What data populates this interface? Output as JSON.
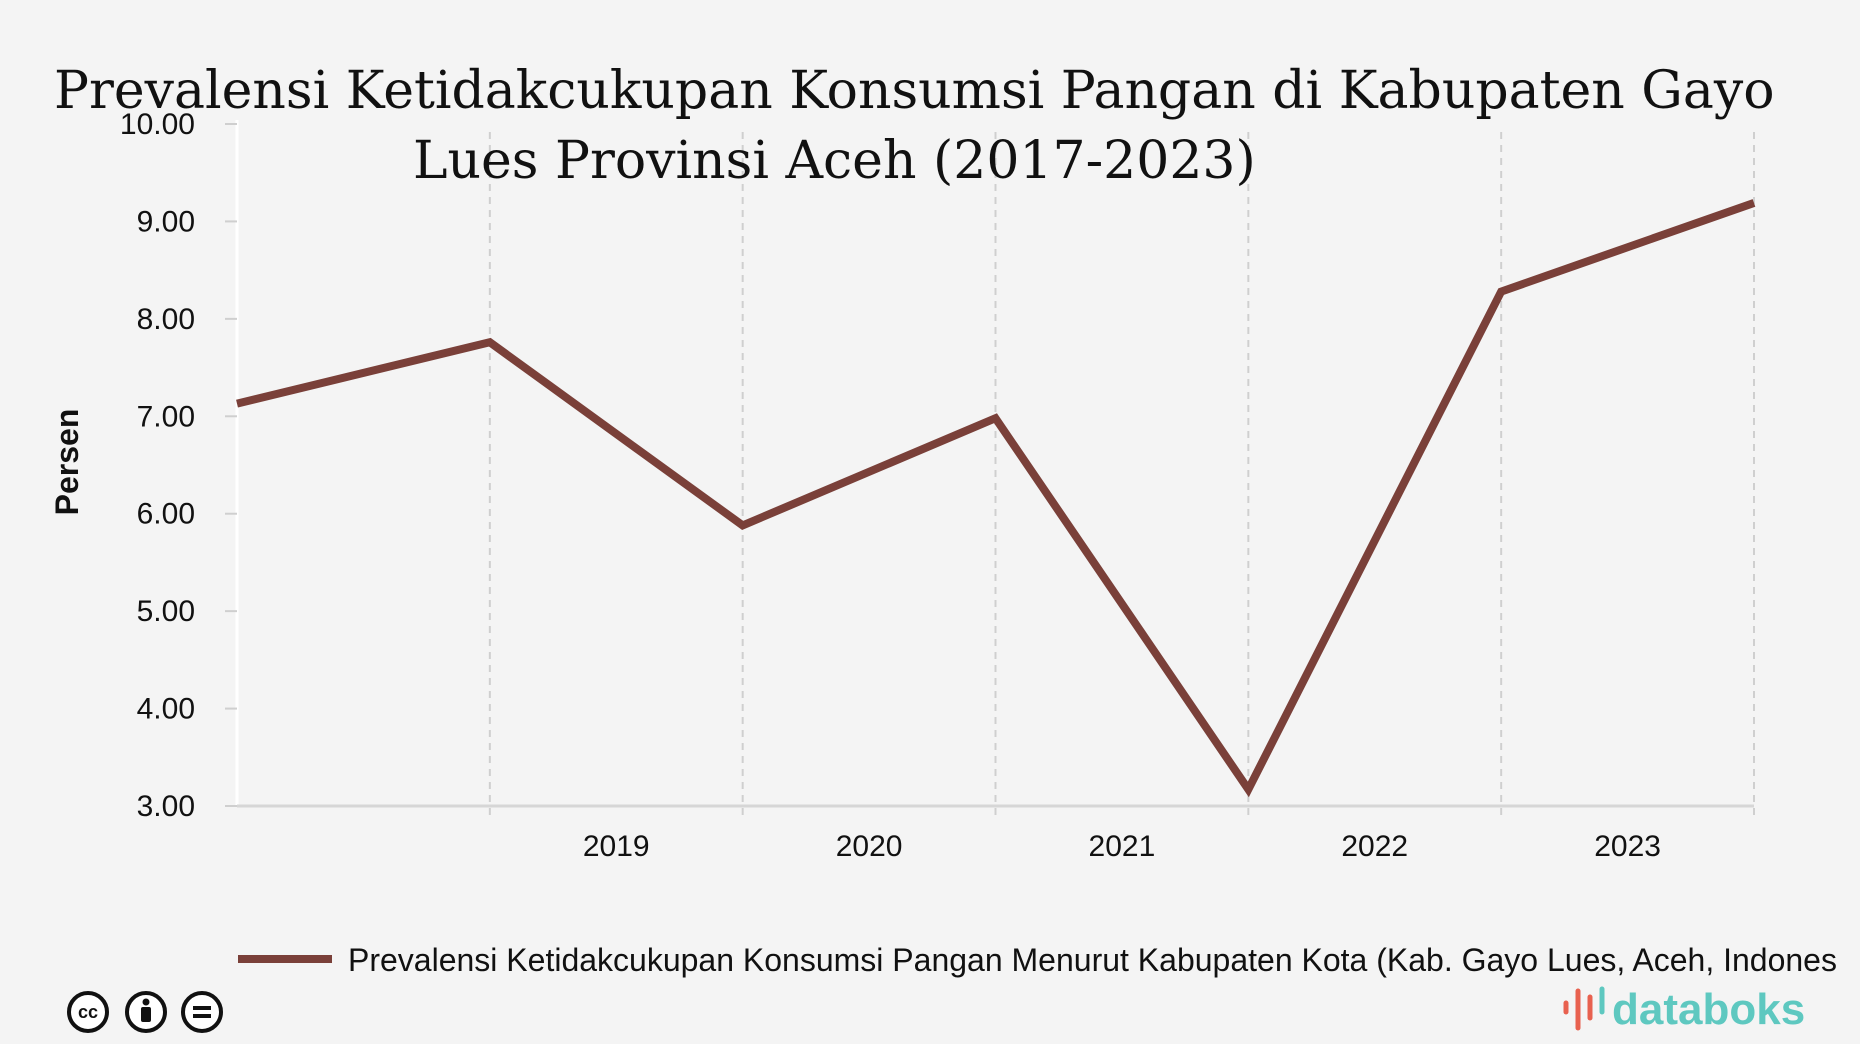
{
  "chart_data": {
    "type": "line",
    "title_lines": [
      "Prevalensi Ketidakcukupan Konsumsi Pangan di Kabupaten Gayo",
      "Lues Provinsi Aceh (2017-2023)"
    ],
    "ylabel": "Persen",
    "ylim": [
      3.0,
      10.0
    ],
    "y_ticks": [
      "3.00",
      "4.00",
      "5.00",
      "6.00",
      "7.00",
      "8.00",
      "9.00",
      "10.00"
    ],
    "x_tick_labels": [
      "2019",
      "2020",
      "2021",
      "2022",
      "2023"
    ],
    "grid": "vertical dashed",
    "legend_position": "bottom",
    "series": [
      {
        "name": "Prevalensi Ketidakcukupan Konsumsi Pangan Menurut Kabupaten Kota (Kab. Gayo Lues, Aceh, Indones",
        "color": "#7a4039",
        "x": [
          2017,
          2018,
          2019,
          2020,
          2021,
          2022,
          2023
        ],
        "values": [
          7.13,
          7.76,
          5.88,
          6.98,
          3.17,
          8.28,
          9.19
        ]
      }
    ]
  },
  "brand": {
    "name": "databoks",
    "color": "#5ec8c0",
    "icon": "databoks-logo-icon"
  },
  "license_icons": [
    "cc-icon",
    "by-icon",
    "nd-icon"
  ]
}
